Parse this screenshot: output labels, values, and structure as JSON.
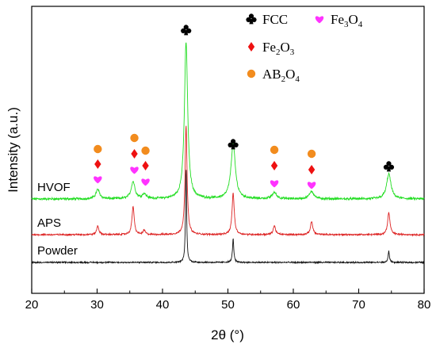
{
  "chart_data": {
    "type": "line",
    "xlabel": "2θ (°)",
    "ylabel": "Intensity (a.u.)",
    "xlim": [
      20,
      80
    ],
    "xticks": [
      20,
      30,
      40,
      50,
      60,
      70,
      80
    ],
    "yticks_shown": false,
    "legend": {
      "placement": "top-right",
      "entries": [
        {
          "symbol": "club",
          "color": "#000000",
          "label": "FCC"
        },
        {
          "symbol": "heart",
          "color": "#ff33ff",
          "label": "Fe3O4",
          "label_parts": [
            "Fe",
            "3",
            "O",
            "4"
          ]
        },
        {
          "symbol": "diamond",
          "color": "#ee1111",
          "label": "Fe2O3",
          "label_parts": [
            "Fe",
            "2",
            "O",
            "3"
          ]
        },
        {
          "symbol": "circle",
          "color": "#f28c1e",
          "label": "AB2O4",
          "label_parts": [
            "AB",
            "2",
            "O",
            "4"
          ]
        }
      ]
    },
    "series": [
      {
        "name": "HVOF",
        "color": "#22dd22",
        "peaks": [
          {
            "x": 30.1,
            "height": 0.06,
            "width": 0.35
          },
          {
            "x": 35.5,
            "height": 0.11,
            "width": 0.35
          },
          {
            "x": 37.2,
            "height": 0.03,
            "width": 0.35
          },
          {
            "x": 43.6,
            "height": 1.0,
            "width": 0.3
          },
          {
            "x": 50.8,
            "height": 0.35,
            "width": 0.4
          },
          {
            "x": 57.1,
            "height": 0.04,
            "width": 0.4
          },
          {
            "x": 62.8,
            "height": 0.05,
            "width": 0.4
          },
          {
            "x": 74.6,
            "height": 0.16,
            "width": 0.4
          }
        ]
      },
      {
        "name": "APS",
        "color": "#dd2222",
        "peaks": [
          {
            "x": 30.1,
            "height": 0.08,
            "width": 0.2
          },
          {
            "x": 35.5,
            "height": 0.26,
            "width": 0.2
          },
          {
            "x": 37.2,
            "height": 0.04,
            "width": 0.2
          },
          {
            "x": 43.6,
            "height": 1.0,
            "width": 0.18
          },
          {
            "x": 50.8,
            "height": 0.38,
            "width": 0.2
          },
          {
            "x": 57.1,
            "height": 0.08,
            "width": 0.22
          },
          {
            "x": 62.8,
            "height": 0.12,
            "width": 0.22
          },
          {
            "x": 74.6,
            "height": 0.2,
            "width": 0.22
          }
        ]
      },
      {
        "name": "Powder",
        "color": "#111111",
        "peaks": [
          {
            "x": 43.6,
            "height": 1.0,
            "width": 0.1
          },
          {
            "x": 50.8,
            "height": 0.25,
            "width": 0.12
          },
          {
            "x": 74.6,
            "height": 0.12,
            "width": 0.12
          }
        ]
      }
    ],
    "annotations": [
      {
        "symbol": "club",
        "x": 43.6,
        "series": "HVOF"
      },
      {
        "symbol": "club",
        "x": 50.8,
        "series": "HVOF"
      },
      {
        "symbol": "club",
        "x": 74.6,
        "series": "HVOF"
      },
      {
        "symbol": "circle",
        "x": 30.1,
        "series": "HVOF"
      },
      {
        "symbol": "diamond",
        "x": 30.1,
        "series": "HVOF"
      },
      {
        "symbol": "heart",
        "x": 30.1,
        "series": "HVOF"
      },
      {
        "symbol": "circle",
        "x": 35.7,
        "series": "HVOF"
      },
      {
        "symbol": "diamond",
        "x": 35.7,
        "series": "HVOF"
      },
      {
        "symbol": "heart",
        "x": 35.7,
        "series": "HVOF"
      },
      {
        "symbol": "circle",
        "x": 37.4,
        "series": "HVOF"
      },
      {
        "symbol": "diamond",
        "x": 37.4,
        "series": "HVOF"
      },
      {
        "symbol": "heart",
        "x": 37.4,
        "series": "HVOF"
      },
      {
        "symbol": "circle",
        "x": 57.1,
        "series": "HVOF"
      },
      {
        "symbol": "diamond",
        "x": 57.1,
        "series": "HVOF"
      },
      {
        "symbol": "heart",
        "x": 57.1,
        "series": "HVOF"
      },
      {
        "symbol": "circle",
        "x": 62.8,
        "series": "HVOF"
      },
      {
        "symbol": "diamond",
        "x": 62.8,
        "series": "HVOF"
      },
      {
        "symbol": "heart",
        "x": 62.8,
        "series": "HVOF"
      }
    ]
  }
}
